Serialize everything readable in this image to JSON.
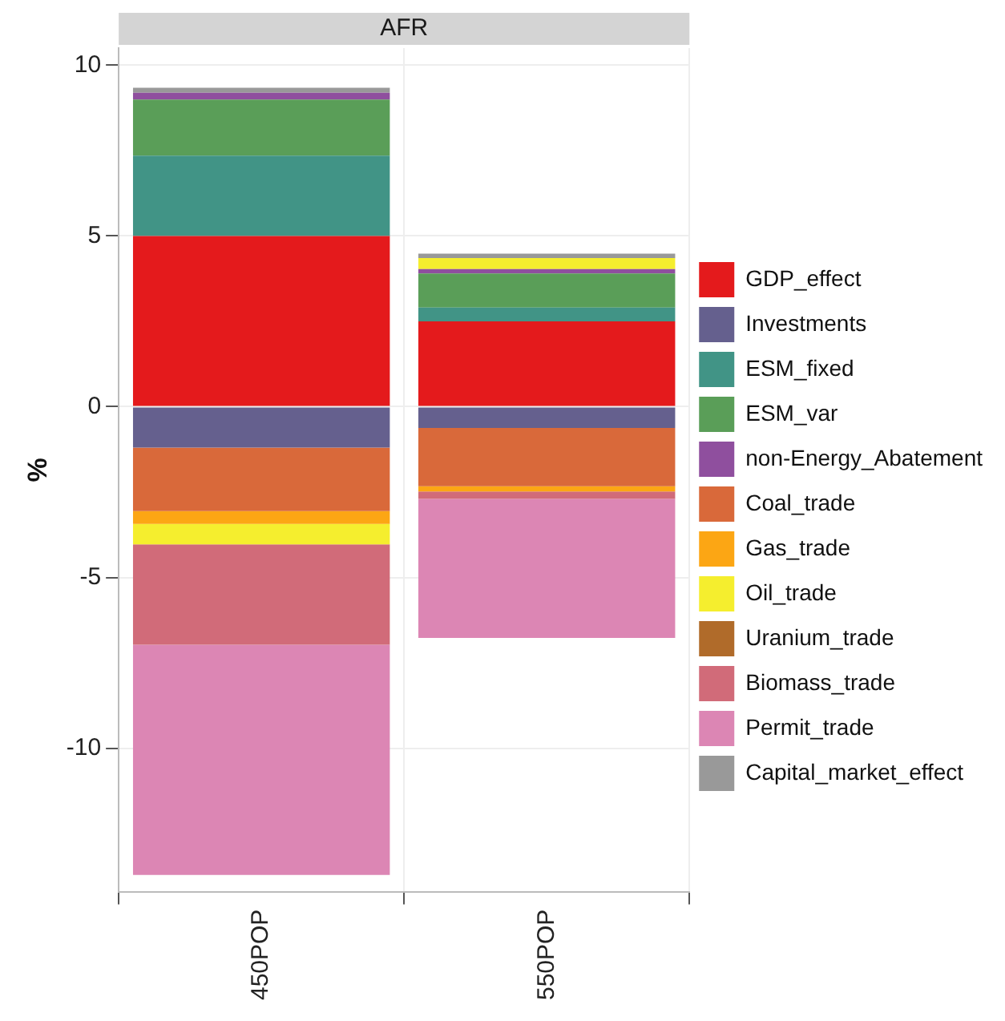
{
  "chart_data": {
    "type": "bar",
    "title": "AFR",
    "ylabel": "%",
    "categories": [
      "450POP",
      "550POP"
    ],
    "stacked": true,
    "ylim": [
      -14.2,
      10.5
    ],
    "yticks": [
      -10,
      -5,
      0,
      5,
      10
    ],
    "grid": true,
    "legend": "right",
    "series": [
      {
        "name": "GDP_effect",
        "color": "#e41a1c",
        "values": [
          5.0,
          2.5
        ]
      },
      {
        "name": "Investments",
        "color": "#65608e",
        "values": [
          -1.2,
          -0.62
        ]
      },
      {
        "name": "ESM_fixed",
        "color": "#419486",
        "values": [
          2.35,
          0.4
        ]
      },
      {
        "name": "ESM_var",
        "color": "#5a9e58",
        "values": [
          1.64,
          1.0
        ]
      },
      {
        "name": "non-Energy_Abatement",
        "color": "#8f4f9e",
        "values": [
          0.2,
          0.13
        ]
      },
      {
        "name": "Coal_trade",
        "color": "#d9693a",
        "values": [
          -1.86,
          -1.71
        ]
      },
      {
        "name": "Gas_trade",
        "color": "#fca614",
        "values": [
          -0.37,
          -0.15
        ]
      },
      {
        "name": "Oil_trade",
        "color": "#f5ee2e",
        "values": [
          -0.6,
          0.32
        ]
      },
      {
        "name": "Uranium_trade",
        "color": "#b06b2a",
        "values": [
          null,
          null
        ]
      },
      {
        "name": "Biomass_trade",
        "color": "#d16b79",
        "values": [
          -2.94,
          -0.22
        ]
      },
      {
        "name": "Permit_trade",
        "color": "#dc86b4",
        "values": [
          -6.74,
          -4.07
        ]
      },
      {
        "name": "Capital_market_effect",
        "color": "#999999",
        "values": [
          0.15,
          0.13
        ]
      }
    ]
  }
}
